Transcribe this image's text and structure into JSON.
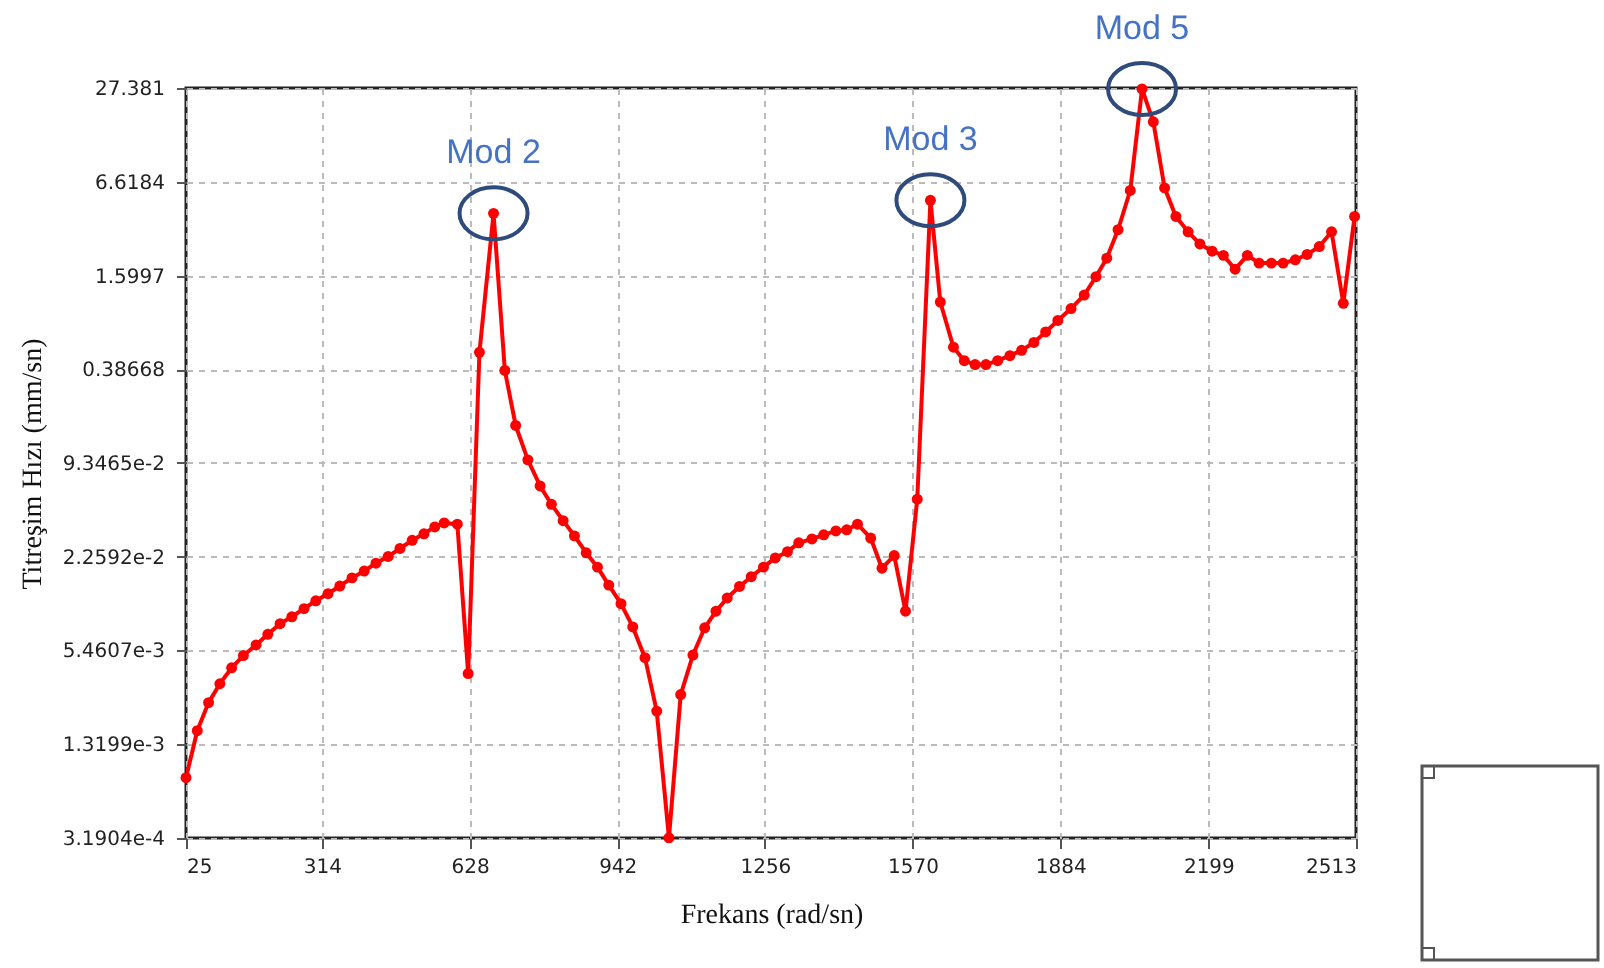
{
  "chart_data": {
    "type": "line",
    "xlabel": "Frekans (rad/sn)",
    "ylabel": "Titreşim Hızı (mm/sn)",
    "x": [
      25,
      49,
      73,
      97,
      122,
      147,
      174,
      199,
      225,
      250,
      276,
      301,
      327,
      352,
      378,
      404,
      429,
      455,
      480,
      506,
      531,
      554,
      574,
      602,
      625,
      649,
      679,
      703,
      726,
      752,
      778,
      802,
      827,
      851,
      876,
      900,
      924,
      950,
      975,
      1001,
      1026,
      1052,
      1077,
      1103,
      1128,
      1152,
      1176,
      1202,
      1227,
      1253,
      1278,
      1304,
      1328,
      1356,
      1381,
      1407,
      1430,
      1453,
      1481,
      1505,
      1531,
      1555,
      1580,
      1608,
      1629,
      1657,
      1680,
      1703,
      1726,
      1751,
      1777,
      1802,
      1828,
      1853,
      1879,
      1907,
      1935,
      1960,
      1983,
      2007,
      2033,
      2058,
      2082,
      2106,
      2130,
      2156,
      2181,
      2207,
      2231,
      2256,
      2282,
      2307,
      2333,
      2358,
      2384,
      2409,
      2435,
      2461,
      2486,
      2510
    ],
    "series": [
      {
        "color": "#ff0000",
        "values": [
          0.000796,
          0.00162,
          0.00248,
          0.0033,
          0.0042,
          0.00506,
          0.00594,
          0.00698,
          0.0082,
          0.0091,
          0.0103,
          0.0116,
          0.0129,
          0.0145,
          0.0164,
          0.0182,
          0.0205,
          0.0227,
          0.0256,
          0.029,
          0.032,
          0.0355,
          0.0377,
          0.037,
          0.00385,
          0.5,
          4.1,
          0.38,
          0.165,
          0.098,
          0.066,
          0.05,
          0.039,
          0.031,
          0.024,
          0.0193,
          0.0147,
          0.0111,
          0.0078,
          0.0049,
          0.00218,
          0.00032,
          0.0028,
          0.0051,
          0.0077,
          0.0099,
          0.0121,
          0.0144,
          0.0167,
          0.0193,
          0.0222,
          0.0244,
          0.0279,
          0.0296,
          0.0315,
          0.0334,
          0.034,
          0.037,
          0.03,
          0.019,
          0.023,
          0.0099,
          0.054,
          5.0,
          1.07,
          0.54,
          0.44,
          0.415,
          0.415,
          0.44,
          0.475,
          0.515,
          0.58,
          0.68,
          0.81,
          0.97,
          1.19,
          1.57,
          2.08,
          3.2,
          5.8,
          27.0,
          16.4,
          6.03,
          3.91,
          3.1,
          2.58,
          2.31,
          2.17,
          1.76,
          2.17,
          1.93,
          1.93,
          1.93,
          2.03,
          2.2,
          2.48,
          3.1,
          1.05,
          3.91
        ]
      }
    ],
    "xlim": [
      25,
      2513
    ],
    "xticks": [
      25,
      314,
      628,
      942,
      1256,
      1570,
      1884,
      2199,
      2513
    ],
    "ylim": [
      0.00031904,
      27.381
    ],
    "log": "y",
    "yticks": [
      {
        "value": 0.00031904,
        "label": "3.1904e-4"
      },
      {
        "value": 0.0013199,
        "label": "1.3199e-3"
      },
      {
        "value": 0.0054607,
        "label": "5.4607e-3"
      },
      {
        "value": 0.022592,
        "label": "2.2592e-2"
      },
      {
        "value": 0.093465,
        "label": "9.3465e-2"
      },
      0.38668,
      1.5997,
      6.6184,
      27.381
    ],
    "grid": true,
    "marker": "circle",
    "line_style": "solid",
    "annotations": [
      {
        "text": "Mod 2",
        "x": 679,
        "y": 4.1
      },
      {
        "text": "Mod 3",
        "x": 1608,
        "y": 5.0
      },
      {
        "text": "Mod 5",
        "x": 2058,
        "y": 27.0
      }
    ]
  }
}
